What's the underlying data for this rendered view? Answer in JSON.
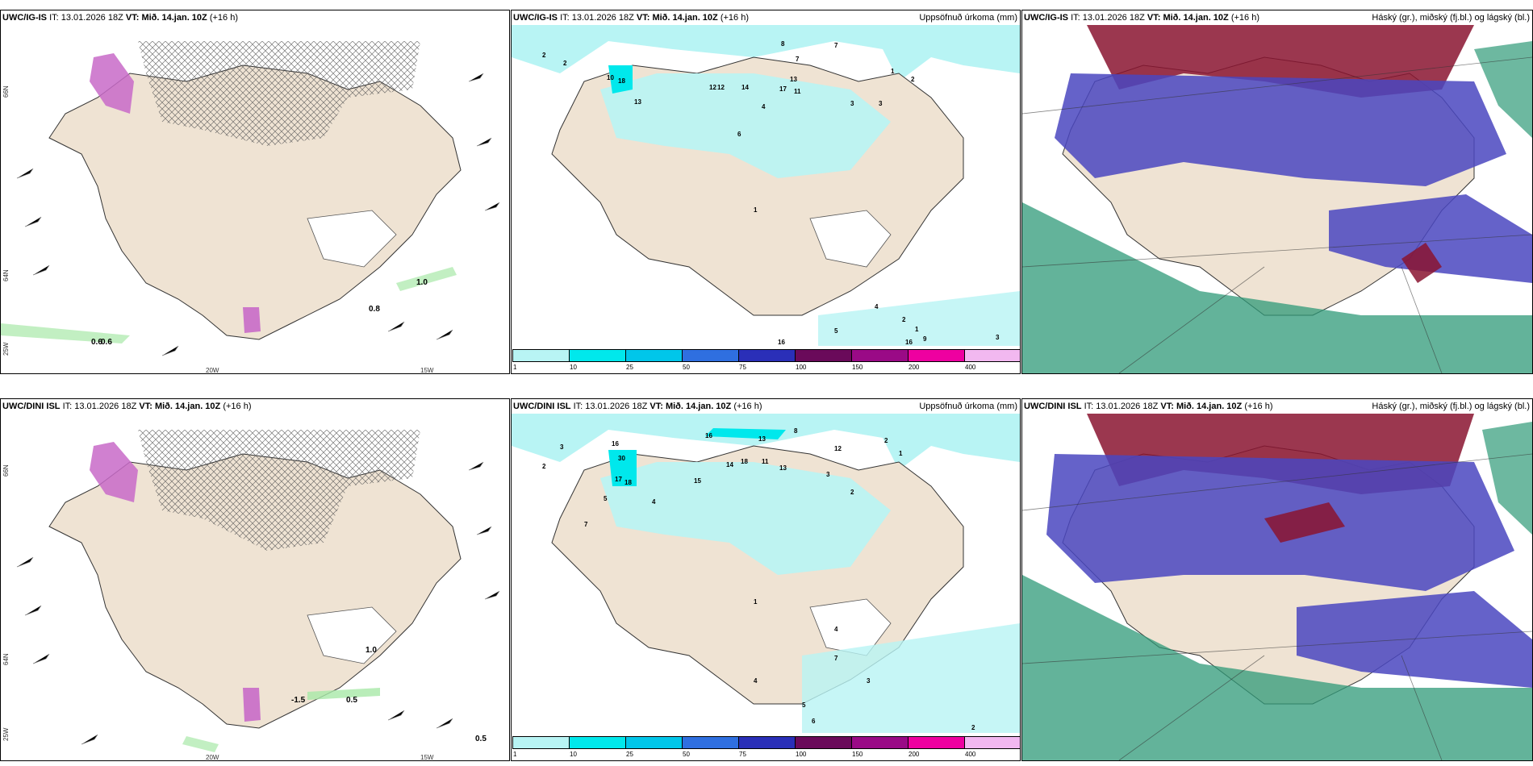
{
  "panels": [
    {
      "model": "UWC/IG-IS",
      "it_label": "IT:",
      "it": "13.01.2026 18Z",
      "vt_label": "VT:",
      "vt": "Mið. 14.jan. 10Z",
      "lead": "(+16 h)",
      "product": ""
    },
    {
      "model": "UWC/IG-IS",
      "it_label": "IT:",
      "it": "13.01.2026 18Z",
      "vt_label": "VT:",
      "vt": "Mið. 14.jan. 10Z",
      "lead": "(+16 h)",
      "product": "Uppsöfnuð úrkoma (mm)"
    },
    {
      "model": "UWC/IG-IS",
      "it_label": "IT:",
      "it": "13.01.2026 18Z",
      "vt_label": "VT:",
      "vt": "Mið. 14.jan. 10Z",
      "lead": "(+16 h)",
      "product": "Háský (gr.), miðský (fj.bl.) og lágský (bl.)"
    },
    {
      "model": "UWC/DINI ISL",
      "it_label": "IT:",
      "it": "13.01.2026 18Z",
      "vt_label": "VT:",
      "vt": "Mið. 14.jan. 10Z",
      "lead": "(+16 h)",
      "product": ""
    },
    {
      "model": "UWC/DINI ISL",
      "it_label": "IT:",
      "it": "13.01.2026 18Z",
      "vt_label": "VT:",
      "vt": "Mið. 14.jan. 10Z",
      "lead": "(+16 h)",
      "product": "Uppsöfnuð úrkoma (mm)"
    },
    {
      "model": "UWC/DINI ISL",
      "it_label": "IT:",
      "it": "13.01.2026 18Z",
      "vt_label": "VT:",
      "vt": "Mið. 14.jan. 10Z",
      "lead": "(+16 h)",
      "product": "Háský (gr.), miðský (fj.bl.) og lágský (bl.)"
    }
  ],
  "grid_labels": {
    "lon_20": "20W",
    "lon_15": "15W",
    "lat_66": "66N",
    "lat_64": "64N",
    "lat_25": "25W"
  },
  "colorbar": {
    "ticks": [
      "1",
      "10",
      "25",
      "50",
      "75",
      "100",
      "150",
      "200",
      "400"
    ],
    "colors": [
      "#b8f4f4",
      "#00e8ec",
      "#00c6ea",
      "#2f6fe0",
      "#2a2fb8",
      "#6a0a5a",
      "#9a0a86",
      "#ee00a0",
      "#f2b8f0"
    ]
  },
  "temp_labels_top": [
    "1.0",
    "0.8",
    "0.6",
    "0.6"
  ],
  "temp_labels_bottom": [
    "1.0",
    "-1.5",
    "0.5",
    "0.5"
  ],
  "precip_top": [
    "2",
    "2",
    "10",
    "18",
    "13",
    "12",
    "12",
    "14",
    "17",
    "13",
    "11",
    "8",
    "7",
    "7",
    "4",
    "6",
    "3",
    "1",
    "2",
    "3",
    "1",
    "4",
    "2",
    "1",
    "9",
    "5",
    "16",
    "16",
    "3"
  ],
  "precip_bottom": [
    "3",
    "2",
    "16",
    "30",
    "17",
    "18",
    "13",
    "16",
    "18",
    "13",
    "11",
    "14",
    "15",
    "12",
    "8",
    "7",
    "5",
    "4",
    "3",
    "2",
    "1",
    "2",
    "1",
    "4",
    "3",
    "7",
    "6",
    "5",
    "4",
    "2"
  ],
  "colors": {
    "land": "#efe3d3",
    "precip_light": "#b8f4f4",
    "precip_mid": "#00e8ec",
    "mixed": "#c86ac8",
    "high_cloud": "#2f9a78",
    "mid_cloud": "#4a46c0",
    "low_cloud": "#8a1430"
  }
}
